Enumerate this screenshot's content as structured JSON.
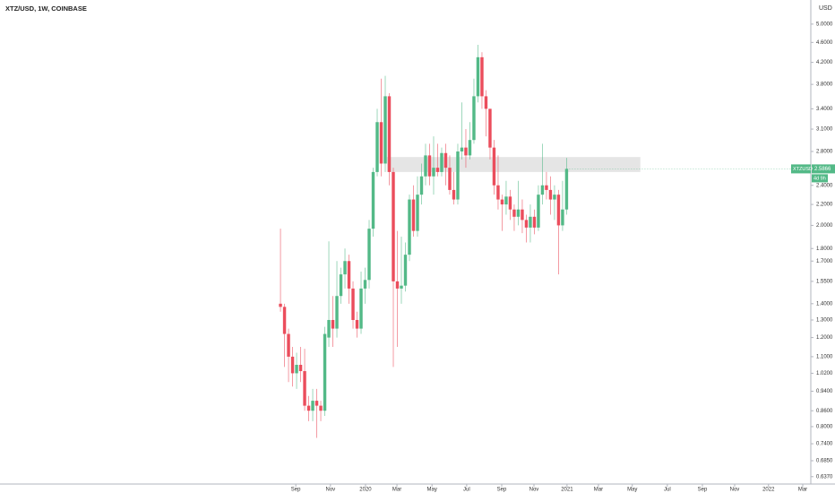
{
  "chart_data": {
    "type": "candlestick",
    "title": "XTZ/USD, 1W, COINBASE",
    "currency": "USD",
    "log_scale": true,
    "up_color": "#53b987",
    "down_color": "#eb4d5c",
    "open": [
      1.4,
      1.38,
      1.22,
      1.1,
      1.02,
      1.06,
      1.03,
      0.88,
      0.86,
      0.9,
      0.88,
      0.86,
      1.2,
      1.3,
      1.25,
      1.45,
      1.6,
      1.7,
      1.5,
      1.3,
      1.25,
      1.5,
      1.56,
      1.97,
      2.55,
      3.2,
      2.65,
      3.6,
      2.55,
      1.55,
      1.5,
      1.52,
      1.75,
      2.25,
      1.95,
      2.3,
      2.5,
      2.75,
      2.5,
      2.6,
      2.55,
      2.78,
      2.6,
      2.35,
      2.25,
      2.8,
      2.85,
      2.75,
      2.95,
      3.6,
      4.3,
      3.6,
      3.4,
      2.85,
      2.4,
      2.25,
      2.2,
      2.28,
      2.15,
      2.08,
      2.15,
      2.05,
      1.98,
      2.08,
      1.98,
      2.3,
      2.4,
      2.35,
      2.25,
      2.3,
      2.0,
      2.15
    ],
    "high": [
      1.97,
      1.4,
      1.25,
      1.15,
      1.12,
      1.15,
      1.14,
      0.92,
      0.95,
      0.95,
      0.9,
      1.26,
      1.86,
      1.45,
      1.7,
      1.65,
      1.8,
      1.75,
      1.55,
      1.35,
      1.62,
      1.65,
      2.05,
      2.6,
      3.4,
      3.9,
      3.95,
      3.65,
      2.6,
      1.95,
      1.9,
      1.85,
      2.3,
      2.4,
      2.5,
      2.65,
      2.9,
      2.9,
      3.0,
      2.9,
      2.85,
      2.9,
      2.75,
      2.55,
      2.9,
      3.5,
      3.1,
      3.2,
      3.9,
      4.55,
      4.4,
      3.7,
      3.4,
      2.95,
      2.75,
      2.3,
      2.45,
      2.35,
      2.2,
      2.45,
      2.25,
      2.1,
      2.2,
      2.15,
      2.4,
      2.9,
      2.55,
      2.5,
      2.4,
      2.35,
      2.45,
      2.72
    ],
    "low": [
      1.35,
      1.05,
      0.98,
      0.96,
      0.95,
      0.98,
      0.86,
      0.82,
      0.82,
      0.76,
      0.82,
      0.84,
      1.15,
      1.15,
      1.2,
      1.4,
      1.5,
      1.4,
      1.25,
      1.2,
      1.22,
      1.4,
      1.5,
      1.9,
      2.5,
      2.5,
      2.55,
      2.4,
      1.05,
      1.15,
      1.4,
      1.48,
      1.7,
      1.9,
      1.9,
      2.2,
      2.4,
      2.4,
      2.3,
      2.5,
      2.5,
      2.4,
      2.3,
      2.2,
      2.2,
      2.7,
      2.6,
      2.7,
      2.9,
      3.5,
      3.4,
      3.0,
      2.7,
      2.3,
      2.15,
      1.95,
      2.1,
      2.05,
      1.95,
      2.0,
      1.93,
      1.85,
      1.85,
      1.92,
      1.95,
      2.2,
      2.25,
      2.1,
      2.05,
      1.6,
      1.95,
      2.1
    ],
    "close": [
      1.38,
      1.22,
      1.1,
      1.02,
      1.06,
      1.03,
      0.88,
      0.86,
      0.9,
      0.88,
      0.86,
      1.22,
      1.3,
      1.25,
      1.45,
      1.6,
      1.7,
      1.5,
      1.3,
      1.25,
      1.5,
      1.56,
      1.97,
      2.55,
      3.2,
      2.65,
      3.6,
      2.55,
      1.55,
      1.5,
      1.52,
      1.75,
      2.25,
      1.95,
      2.3,
      2.5,
      2.75,
      2.5,
      2.6,
      2.55,
      2.78,
      2.6,
      2.35,
      2.25,
      2.8,
      2.85,
      2.75,
      2.95,
      3.6,
      4.3,
      3.6,
      3.4,
      2.85,
      2.4,
      2.25,
      2.2,
      2.28,
      2.15,
      2.08,
      2.15,
      2.05,
      1.98,
      2.08,
      1.98,
      2.3,
      2.4,
      2.35,
      2.25,
      2.3,
      2.0,
      2.15,
      2.5866
    ],
    "xlim": [
      -69.6,
      131.6
    ],
    "xticks": [
      {
        "value": 3.8,
        "label": "Sep"
      },
      {
        "value": 12.4,
        "label": "Nov"
      },
      {
        "value": 21.1,
        "label": "2020"
      },
      {
        "value": 28.9,
        "label": "Mar"
      },
      {
        "value": 37.6,
        "label": "May"
      },
      {
        "value": 46.2,
        "label": "Jul"
      },
      {
        "value": 54.9,
        "label": "Sep"
      },
      {
        "value": 62.9,
        "label": "Nov"
      },
      {
        "value": 71.1,
        "label": "2021"
      },
      {
        "value": 78.9,
        "label": "Mar"
      },
      {
        "value": 87.3,
        "label": "May"
      },
      {
        "value": 96,
        "label": "Jul"
      },
      {
        "value": 104.7,
        "label": "Sep"
      },
      {
        "value": 112.7,
        "label": "Nov"
      },
      {
        "value": 121.1,
        "label": "2022"
      },
      {
        "value": 129.6,
        "label": "Mar"
      }
    ],
    "ylim": [
      0.616,
      5.58
    ],
    "yticks": [
      {
        "value": 5,
        "label": "5.0000"
      },
      {
        "value": 4.6,
        "label": "4.6000"
      },
      {
        "value": 4.2,
        "label": "4.2000"
      },
      {
        "value": 3.8,
        "label": "3.8000"
      },
      {
        "value": 3.4,
        "label": "3.4000"
      },
      {
        "value": 3.1,
        "label": "3.1000"
      },
      {
        "value": 2.8,
        "label": "2.8000"
      },
      {
        "value": 2.4,
        "label": "2.4000"
      },
      {
        "value": 2.2,
        "label": "2.2000"
      },
      {
        "value": 2,
        "label": "2.0000"
      },
      {
        "value": 1.8,
        "label": "1.8000"
      },
      {
        "value": 1.7,
        "label": "1.7000"
      },
      {
        "value": 1.55,
        "label": "1.5500"
      },
      {
        "value": 1.4,
        "label": "1.4000"
      },
      {
        "value": 1.3,
        "label": "1.3000"
      },
      {
        "value": 1.2,
        "label": "1.2000"
      },
      {
        "value": 1.1,
        "label": "1.1000"
      },
      {
        "value": 1.02,
        "label": "1.0200"
      },
      {
        "value": 0.94,
        "label": "0.9400"
      },
      {
        "value": 0.86,
        "label": "0.8600"
      },
      {
        "value": 0.8,
        "label": "0.8000"
      },
      {
        "value": 0.74,
        "label": "0.7400"
      },
      {
        "value": 0.685,
        "label": "0.6850"
      },
      {
        "value": 0.637,
        "label": "0.6370"
      }
    ],
    "zone": {
      "x": [
        26.4,
        89.3
      ],
      "y": [
        2.55,
        2.73
      ],
      "color": "#e0e0e0"
    },
    "last_price": {
      "symbol": "XTZUSD",
      "countdown": "4d 9h",
      "color": "#53b987"
    }
  }
}
